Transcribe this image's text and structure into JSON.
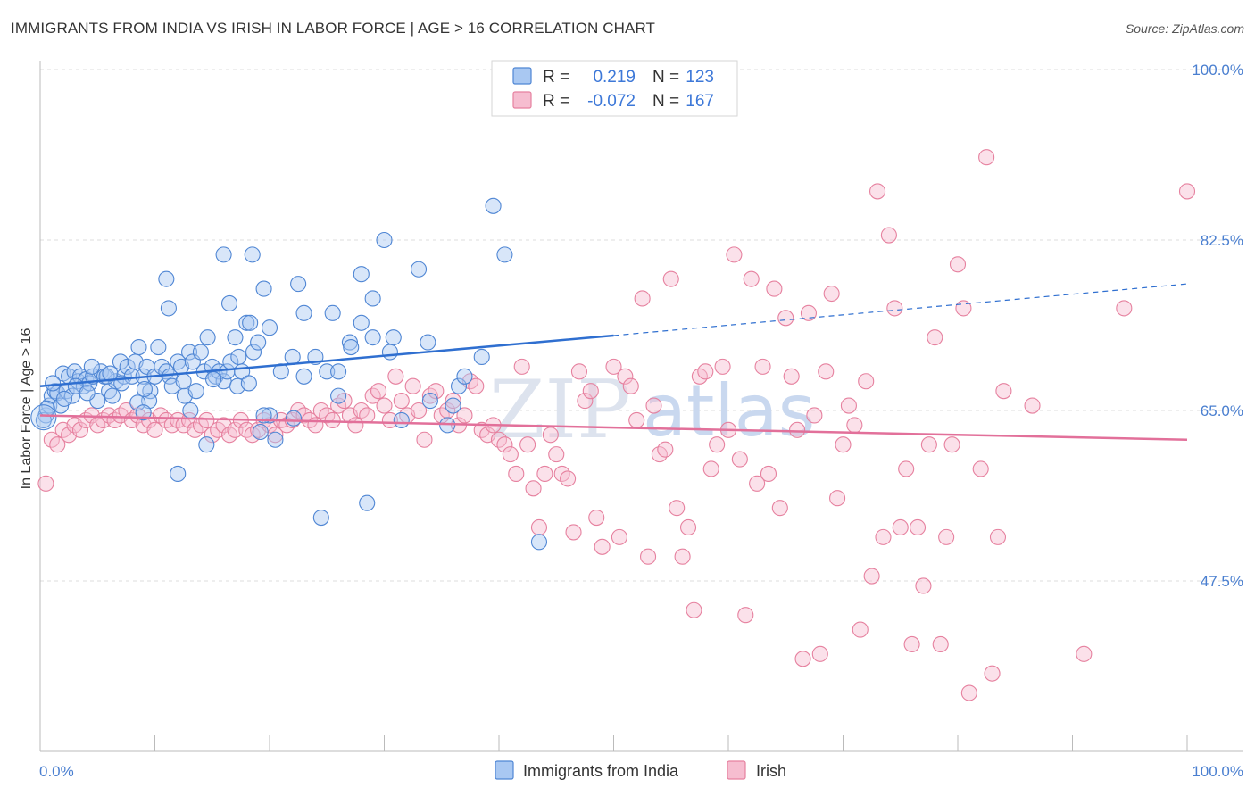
{
  "title": "IMMIGRANTS FROM INDIA VS IRISH IN LABOR FORCE | AGE > 16 CORRELATION CHART",
  "source": "Source: ZipAtlas.com",
  "watermark": {
    "zip": "ZIP",
    "atlas": "atlas"
  },
  "legend": {
    "rows": [
      {
        "r_label": "R =",
        "r_value": "0.219",
        "n_label": "N =",
        "n_value": "123"
      },
      {
        "r_label": "R =",
        "r_value": "-0.072",
        "n_label": "N =",
        "n_value": "167"
      }
    ]
  },
  "bottom_legend": [
    "Immigrants from India",
    "Irish"
  ],
  "colors": {
    "blue_fill": "#a9c8f2",
    "blue_stroke": "#4f86d4",
    "blue_line": "#2f6fd0",
    "pink_fill": "#f6bdd0",
    "pink_stroke": "#e6819f",
    "pink_line": "#e2709a",
    "grid": "#dddddd",
    "tick_text": "#4a7fd0"
  },
  "chart_data": {
    "type": "scatter",
    "title": "IMMIGRANTS FROM INDIA VS IRISH IN LABOR FORCE | AGE > 16 CORRELATION CHART",
    "xlabel": "",
    "ylabel": "In Labor Force | Age > 16",
    "xlim": [
      0,
      100
    ],
    "ylim": [
      30,
      100
    ],
    "x_tick_labels": [
      "0.0%",
      "100.0%"
    ],
    "y_ticks": [
      47.5,
      65.0,
      82.5,
      100.0
    ],
    "y_tick_labels": [
      "47.5%",
      "65.0%",
      "82.5%",
      "100.0%"
    ],
    "grid": true,
    "series": [
      {
        "name": "Immigrants from India",
        "r": 0.219,
        "n": 123,
        "trend": {
          "x0": 0,
          "y0": 67.5,
          "x1": 50,
          "y1": 72.7,
          "dash_x1": 100,
          "dash_y1": 78.0
        },
        "points": [
          [
            0.5,
            64.5
          ],
          [
            0.8,
            65.5
          ],
          [
            1.0,
            66.5
          ],
          [
            1.3,
            67
          ],
          [
            1.5,
            66.8
          ],
          [
            1.8,
            65.5
          ],
          [
            2.0,
            68.8
          ],
          [
            2.3,
            67
          ],
          [
            2.5,
            68.5
          ],
          [
            2.8,
            66.5
          ],
          [
            3.0,
            69
          ],
          [
            3.3,
            68
          ],
          [
            3.5,
            68.5
          ],
          [
            3.8,
            67.5
          ],
          [
            4.0,
            68.2
          ],
          [
            4.3,
            67.8
          ],
          [
            4.6,
            68.5
          ],
          [
            5.0,
            66
          ],
          [
            5.3,
            69
          ],
          [
            5.6,
            68.5
          ],
          [
            6.0,
            67
          ],
          [
            6.3,
            66.5
          ],
          [
            6.6,
            68
          ],
          [
            7.0,
            70
          ],
          [
            7.3,
            68.5
          ],
          [
            7.6,
            69.5
          ],
          [
            8.0,
            68.5
          ],
          [
            8.3,
            70
          ],
          [
            8.6,
            71.5
          ],
          [
            9.0,
            68.5
          ],
          [
            9.3,
            69.5
          ],
          [
            9.6,
            67
          ],
          [
            10.0,
            68.5
          ],
          [
            10.3,
            71.5
          ],
          [
            10.6,
            69.5
          ],
          [
            11.0,
            69
          ],
          [
            11.3,
            68.5
          ],
          [
            11.5,
            67.5
          ],
          [
            12.0,
            70
          ],
          [
            12.3,
            69.5
          ],
          [
            12.6,
            66.5
          ],
          [
            13.0,
            71
          ],
          [
            13.3,
            70
          ],
          [
            13.6,
            67
          ],
          [
            14.0,
            71
          ],
          [
            14.3,
            69
          ],
          [
            14.6,
            72.5
          ],
          [
            15.0,
            69.5
          ],
          [
            15.3,
            68.5
          ],
          [
            15.6,
            69
          ],
          [
            16.0,
            68
          ],
          [
            16.3,
            69
          ],
          [
            16.6,
            70
          ],
          [
            17.0,
            72.5
          ],
          [
            17.3,
            70.5
          ],
          [
            17.6,
            69
          ],
          [
            18.0,
            74
          ],
          [
            18.3,
            74
          ],
          [
            18.6,
            71
          ],
          [
            19.0,
            72
          ],
          [
            20.0,
            73.5
          ],
          [
            21.0,
            69
          ],
          [
            22.0,
            70.5
          ],
          [
            23.0,
            68.5
          ],
          [
            24.0,
            70.5
          ],
          [
            25.0,
            69
          ],
          [
            26.0,
            69
          ],
          [
            27.0,
            72
          ],
          [
            28.0,
            74
          ],
          [
            29.0,
            72.5
          ],
          [
            30.5,
            71
          ],
          [
            30.8,
            72.5
          ],
          [
            11.0,
            78.5
          ],
          [
            11.2,
            75.5
          ],
          [
            16.5,
            76
          ],
          [
            16.0,
            81
          ],
          [
            18.5,
            81
          ],
          [
            19.5,
            77.5
          ],
          [
            22.5,
            78
          ],
          [
            23.0,
            75
          ],
          [
            25.5,
            75
          ],
          [
            28.0,
            79
          ],
          [
            29.0,
            76.5
          ],
          [
            33.0,
            79.5
          ],
          [
            30.0,
            82.5
          ],
          [
            39.5,
            86
          ],
          [
            40.5,
            81
          ],
          [
            14.5,
            61.5
          ],
          [
            20.0,
            64.5
          ],
          [
            20.5,
            62
          ],
          [
            26.0,
            66.5
          ],
          [
            31.5,
            64
          ],
          [
            24.5,
            54
          ],
          [
            28.5,
            55.5
          ],
          [
            35.5,
            63.5
          ],
          [
            34.0,
            66
          ],
          [
            36.0,
            65.5
          ],
          [
            43.5,
            51.5
          ],
          [
            9.5,
            66
          ],
          [
            8.5,
            65.8
          ],
          [
            12.5,
            68
          ],
          [
            5.8,
            68.5
          ],
          [
            0.3,
            64
          ],
          [
            0.6,
            65.2
          ],
          [
            1.1,
            67.8
          ],
          [
            2.1,
            66.2
          ],
          [
            3.1,
            67.5
          ],
          [
            4.1,
            66.8
          ],
          [
            6.1,
            68.8
          ],
          [
            7.1,
            67.8
          ],
          [
            9.1,
            67.2
          ],
          [
            13.1,
            65
          ],
          [
            15.1,
            68.2
          ],
          [
            17.2,
            67.5
          ],
          [
            18.2,
            67.8
          ],
          [
            19.2,
            62.8
          ],
          [
            22.1,
            64.2
          ],
          [
            27.1,
            71.5
          ],
          [
            33.8,
            72
          ],
          [
            36.5,
            67.5
          ],
          [
            37.0,
            68.5
          ],
          [
            38.5,
            70.5
          ],
          [
            12.0,
            58.5
          ],
          [
            19.5,
            64.5
          ],
          [
            9.0,
            64.8
          ],
          [
            4.5,
            69.5
          ]
        ]
      },
      {
        "name": "Irish",
        "r": -0.072,
        "n": 167,
        "trend": {
          "x0": 0,
          "y0": 64.5,
          "x1": 100,
          "y1": 62.0
        },
        "points": [
          [
            0.5,
            57.5
          ],
          [
            1.0,
            62
          ],
          [
            1.5,
            61.5
          ],
          [
            2.0,
            63
          ],
          [
            2.5,
            62.5
          ],
          [
            3.0,
            63.5
          ],
          [
            3.5,
            63
          ],
          [
            4.0,
            64
          ],
          [
            4.5,
            64.5
          ],
          [
            5.0,
            63.5
          ],
          [
            5.5,
            64
          ],
          [
            6.0,
            64.5
          ],
          [
            6.5,
            64
          ],
          [
            7.0,
            64.5
          ],
          [
            7.5,
            65
          ],
          [
            8.0,
            64
          ],
          [
            8.5,
            64.5
          ],
          [
            9.0,
            63.5
          ],
          [
            9.5,
            64
          ],
          [
            10.0,
            63
          ],
          [
            10.5,
            64.5
          ],
          [
            11.0,
            64
          ],
          [
            11.5,
            63.5
          ],
          [
            12.0,
            64
          ],
          [
            12.5,
            63.5
          ],
          [
            13.0,
            64
          ],
          [
            13.5,
            63
          ],
          [
            14.0,
            63.5
          ],
          [
            14.5,
            64
          ],
          [
            15.0,
            62.5
          ],
          [
            15.5,
            63
          ],
          [
            16.0,
            63.5
          ],
          [
            16.5,
            62.5
          ],
          [
            17.0,
            63
          ],
          [
            17.5,
            64
          ],
          [
            18.0,
            63
          ],
          [
            18.5,
            62.5
          ],
          [
            19.0,
            63
          ],
          [
            19.5,
            64
          ],
          [
            20.0,
            63.5
          ],
          [
            20.5,
            62.5
          ],
          [
            21.0,
            64
          ],
          [
            21.5,
            63.5
          ],
          [
            22.0,
            64
          ],
          [
            22.5,
            65
          ],
          [
            23.0,
            64.5
          ],
          [
            23.5,
            64
          ],
          [
            24.0,
            63.5
          ],
          [
            24.5,
            65
          ],
          [
            25.0,
            64.5
          ],
          [
            25.5,
            64
          ],
          [
            26.0,
            65.5
          ],
          [
            26.5,
            66
          ],
          [
            27.0,
            64.5
          ],
          [
            27.5,
            63.5
          ],
          [
            28.0,
            65
          ],
          [
            28.5,
            64.5
          ],
          [
            29.0,
            66.5
          ],
          [
            29.5,
            67
          ],
          [
            30.0,
            65.5
          ],
          [
            30.5,
            64
          ],
          [
            31.0,
            68.5
          ],
          [
            31.5,
            66
          ],
          [
            32.0,
            64.5
          ],
          [
            32.5,
            67.5
          ],
          [
            33.0,
            65
          ],
          [
            33.5,
            62
          ],
          [
            34.0,
            66.5
          ],
          [
            34.5,
            67
          ],
          [
            35.0,
            64.5
          ],
          [
            35.5,
            65
          ],
          [
            36.0,
            66
          ],
          [
            36.5,
            63.5
          ],
          [
            37.0,
            64.5
          ],
          [
            37.5,
            68
          ],
          [
            38.0,
            67.5
          ],
          [
            38.5,
            63
          ],
          [
            39.0,
            62.5
          ],
          [
            39.5,
            63.5
          ],
          [
            40.0,
            62
          ],
          [
            40.5,
            61.5
          ],
          [
            41.0,
            60.5
          ],
          [
            41.5,
            58.5
          ],
          [
            42.0,
            69.5
          ],
          [
            42.5,
            61.5
          ],
          [
            43.0,
            57
          ],
          [
            43.5,
            53
          ],
          [
            44.0,
            58.5
          ],
          [
            44.5,
            62.5
          ],
          [
            45.0,
            60.5
          ],
          [
            45.5,
            58.5
          ],
          [
            46.0,
            58
          ],
          [
            46.5,
            52.5
          ],
          [
            47.0,
            69
          ],
          [
            47.5,
            66
          ],
          [
            48.0,
            67
          ],
          [
            48.5,
            54
          ],
          [
            49.0,
            51
          ],
          [
            50.0,
            69.5
          ],
          [
            50.5,
            52
          ],
          [
            51.0,
            68.5
          ],
          [
            51.5,
            67.5
          ],
          [
            52.0,
            64
          ],
          [
            52.5,
            76.5
          ],
          [
            53.0,
            50
          ],
          [
            53.5,
            65.5
          ],
          [
            54.0,
            60.5
          ],
          [
            54.5,
            61
          ],
          [
            55.0,
            78.5
          ],
          [
            55.5,
            55
          ],
          [
            56.0,
            50
          ],
          [
            56.5,
            53
          ],
          [
            57.0,
            44.5
          ],
          [
            57.5,
            68.5
          ],
          [
            58.0,
            69
          ],
          [
            58.5,
            59
          ],
          [
            59.0,
            61.5
          ],
          [
            59.5,
            69.5
          ],
          [
            60.0,
            63
          ],
          [
            60.5,
            81
          ],
          [
            61.0,
            60
          ],
          [
            61.5,
            44
          ],
          [
            62.0,
            78.5
          ],
          [
            62.5,
            57.5
          ],
          [
            63.0,
            69.5
          ],
          [
            63.5,
            58.5
          ],
          [
            64.0,
            77.5
          ],
          [
            64.5,
            55
          ],
          [
            65.0,
            74.5
          ],
          [
            65.5,
            68.5
          ],
          [
            66.0,
            63
          ],
          [
            66.5,
            39.5
          ],
          [
            67.0,
            75
          ],
          [
            67.5,
            64.5
          ],
          [
            68.0,
            40
          ],
          [
            68.5,
            69
          ],
          [
            69.0,
            77
          ],
          [
            69.5,
            56
          ],
          [
            70.0,
            61.5
          ],
          [
            70.5,
            65.5
          ],
          [
            71.0,
            63.5
          ],
          [
            71.5,
            42.5
          ],
          [
            72.0,
            68
          ],
          [
            72.5,
            48
          ],
          [
            73.0,
            87.5
          ],
          [
            73.5,
            52
          ],
          [
            74.0,
            83
          ],
          [
            74.5,
            75.5
          ],
          [
            75.0,
            53
          ],
          [
            75.5,
            59
          ],
          [
            76.0,
            41
          ],
          [
            76.5,
            53
          ],
          [
            77.0,
            47
          ],
          [
            77.5,
            61.5
          ],
          [
            78.0,
            72.5
          ],
          [
            78.5,
            41
          ],
          [
            79.0,
            52
          ],
          [
            79.5,
            61.5
          ],
          [
            80.0,
            80
          ],
          [
            80.5,
            75.5
          ],
          [
            81.0,
            36
          ],
          [
            82.0,
            59
          ],
          [
            82.5,
            91
          ],
          [
            83.0,
            38
          ],
          [
            83.5,
            52
          ],
          [
            84.0,
            67
          ],
          [
            86.5,
            65.5
          ],
          [
            91.0,
            40
          ],
          [
            94.5,
            75.5
          ],
          [
            100.0,
            87.5
          ]
        ]
      }
    ]
  }
}
